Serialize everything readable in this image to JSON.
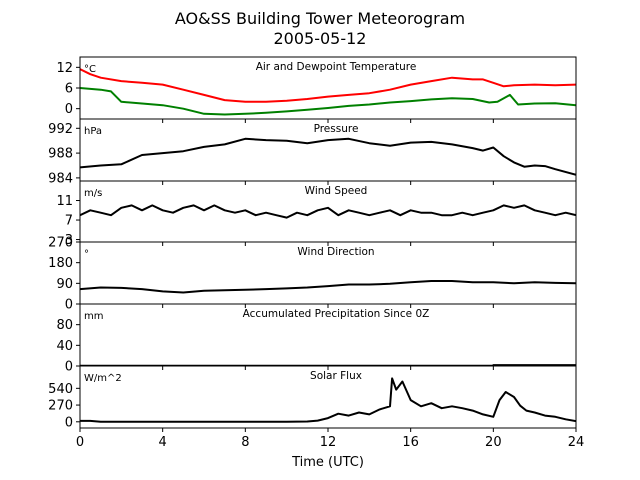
{
  "figure": {
    "title_line1": "AO&SS Building Tower Meteorogram",
    "title_line2": "2005-05-12",
    "xlabel": "Time (UTC)"
  },
  "chart_data": {
    "type": "line",
    "x_range": [
      0,
      24
    ],
    "x_ticks": [
      0,
      4,
      8,
      12,
      16,
      20,
      24
    ],
    "panels": [
      {
        "id": "temp",
        "title": "Air and Dewpoint Temperature",
        "unit": "°C",
        "ylim": [
          -3,
          15
        ],
        "yticks": [
          0,
          6,
          12
        ],
        "series": [
          {
            "color": "#ff0000",
            "x": [
              0,
              0.5,
              1,
              2,
              3,
              4,
              5,
              6,
              7,
              8,
              9,
              10,
              11,
              12,
              13,
              14,
              15,
              16,
              17,
              18,
              19,
              19.5,
              20,
              20.5,
              21,
              22,
              23,
              24
            ],
            "y": [
              11.5,
              10,
              9,
              8,
              7.5,
              7,
              5.5,
              4,
              2.5,
              2,
              2,
              2.3,
              2.8,
              3.5,
              4,
              4.5,
              5.5,
              7,
              8,
              9,
              8.5,
              8.5,
              7.5,
              6.5,
              6.8,
              7,
              6.8,
              7
            ]
          },
          {
            "color": "#008000",
            "x": [
              0,
              1,
              1.5,
              2,
              3,
              4,
              5,
              6,
              7,
              8,
              9,
              10,
              11,
              12,
              13,
              14,
              15,
              16,
              17,
              18,
              19,
              19.8,
              20.2,
              20.8,
              21.2,
              22,
              23,
              24
            ],
            "y": [
              6,
              5.5,
              5,
              2,
              1.5,
              1,
              0,
              -1.5,
              -1.7,
              -1.5,
              -1.2,
              -0.8,
              -0.3,
              0.2,
              0.8,
              1.2,
              1.8,
              2.2,
              2.7,
              3,
              2.8,
              1.8,
              2,
              4,
              1.2,
              1.5,
              1.6,
              1
            ]
          }
        ]
      },
      {
        "id": "pressure",
        "title": "Pressure",
        "unit": "hPa",
        "ylim": [
          983.5,
          993.5
        ],
        "yticks": [
          984,
          988,
          992
        ],
        "series": [
          {
            "color": "#000000",
            "x": [
              0,
              1,
              2,
              3,
              4,
              5,
              6,
              7,
              8,
              9,
              10,
              11,
              12,
              13,
              14,
              15,
              16,
              17,
              18,
              19,
              19.5,
              20,
              20.5,
              21,
              21.5,
              22,
              22.5,
              23,
              24
            ],
            "y": [
              985.7,
              986.0,
              986.2,
              987.7,
              988.0,
              988.3,
              989.0,
              989.4,
              990.3,
              990.1,
              990.0,
              989.6,
              990.1,
              990.3,
              989.6,
              989.2,
              989.7,
              989.8,
              989.4,
              988.8,
              988.4,
              988.9,
              987.5,
              986.5,
              985.8,
              986.0,
              985.9,
              985.4,
              984.5
            ]
          }
        ]
      },
      {
        "id": "wind_speed",
        "title": "Wind Speed",
        "unit": "m/s",
        "ylim": [
          2.5,
          15
        ],
        "yticks": [
          3,
          7,
          11
        ],
        "series": [
          {
            "color": "#000000",
            "x": [
              0,
              0.5,
              1,
              1.5,
              2,
              2.5,
              3,
              3.5,
              4,
              4.5,
              5,
              5.5,
              6,
              6.5,
              7,
              7.5,
              8,
              8.5,
              9,
              9.5,
              10,
              10.5,
              11,
              11.5,
              12,
              12.5,
              13,
              13.5,
              14,
              14.5,
              15,
              15.5,
              16,
              16.5,
              17,
              17.5,
              18,
              18.5,
              19,
              19.5,
              20,
              20.5,
              21,
              21.5,
              22,
              22.5,
              23,
              23.5,
              24
            ],
            "y": [
              8,
              9,
              8.5,
              8,
              9.5,
              10,
              9,
              10,
              9,
              8.5,
              9.5,
              10,
              9,
              10,
              9,
              8.5,
              9,
              8,
              8.5,
              8,
              7.5,
              8.5,
              8,
              9,
              9.5,
              8,
              9,
              8.5,
              8,
              8.5,
              9,
              8,
              9,
              8.5,
              8.5,
              8,
              8,
              8.5,
              8,
              8.5,
              9,
              10,
              9.5,
              10,
              9,
              8.5,
              8,
              8.5,
              8
            ]
          }
        ]
      },
      {
        "id": "wind_dir",
        "title": "Wind Direction",
        "unit": "°",
        "ylim": [
          0,
          270
        ],
        "yticks": [
          0,
          90,
          180,
          270
        ],
        "series": [
          {
            "color": "#000000",
            "x": [
              0,
              1,
              2,
              3,
              4,
              5,
              6,
              7,
              8,
              9,
              10,
              11,
              12,
              13,
              14,
              15,
              16,
              17,
              18,
              19,
              20,
              21,
              22,
              23,
              24
            ],
            "y": [
              65,
              72,
              70,
              65,
              55,
              50,
              58,
              60,
              62,
              65,
              68,
              72,
              78,
              85,
              85,
              88,
              95,
              100,
              100,
              95,
              95,
              90,
              95,
              92,
              90
            ]
          }
        ]
      },
      {
        "id": "precip",
        "title": "Accumulated Precipitation Since 0Z",
        "unit": "mm",
        "ylim": [
          0,
          120
        ],
        "yticks": [
          0,
          40,
          80
        ],
        "series": [
          {
            "color": "#000000",
            "x": [
              0,
              20,
              20,
              24
            ],
            "y": [
              0.3,
              0.3,
              1.8,
              1.8
            ]
          }
        ]
      },
      {
        "id": "solar",
        "title": "Solar Flux",
        "unit": "W/m^2",
        "ylim": [
          -100,
          900
        ],
        "yticks": [
          0,
          270,
          540
        ],
        "series": [
          {
            "color": "#000000",
            "x": [
              0,
              0.5,
              1,
              2,
              4,
              6,
              8,
              10,
              11,
              11.5,
              12,
              12.5,
              13,
              13.5,
              14,
              14.5,
              15,
              15.1,
              15.3,
              15.6,
              16,
              16.5,
              17,
              17.5,
              18,
              18.5,
              19,
              19.5,
              20,
              20.3,
              20.6,
              21,
              21.3,
              21.6,
              22,
              22.5,
              23,
              23.5,
              24
            ],
            "y": [
              15,
              15,
              0,
              0,
              0,
              0,
              0,
              0,
              5,
              20,
              60,
              130,
              100,
              150,
              120,
              200,
              250,
              700,
              520,
              650,
              350,
              250,
              300,
              220,
              250,
              220,
              180,
              120,
              80,
              350,
              480,
              400,
              260,
              180,
              150,
              100,
              80,
              40,
              10
            ]
          }
        ]
      }
    ]
  }
}
